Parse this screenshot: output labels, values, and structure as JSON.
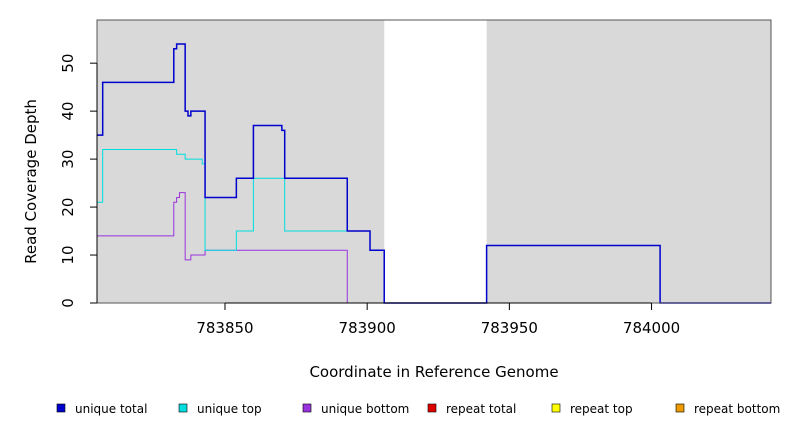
{
  "chart_data": {
    "type": "line",
    "title": "",
    "xlabel": "Coordinate in Reference Genome",
    "ylabel": "Read Coverage Depth",
    "xlim": [
      783805,
      784042
    ],
    "ylim": [
      0,
      59
    ],
    "xticks": [
      783850,
      783900,
      783950,
      784000
    ],
    "yticks": [
      0,
      10,
      20,
      30,
      40,
      50
    ],
    "grid": false,
    "background_color": "#d9d9d9",
    "unshaded_regions": [
      [
        783906,
        783942
      ]
    ],
    "series": [
      {
        "name": "unique total",
        "color": "#0000cc",
        "points": [
          [
            783805,
            35
          ],
          [
            783807,
            35
          ],
          [
            783807,
            46
          ],
          [
            783832,
            46
          ],
          [
            783832,
            53
          ],
          [
            783833,
            53
          ],
          [
            783833,
            54
          ],
          [
            783836,
            54
          ],
          [
            783836,
            40
          ],
          [
            783837,
            40
          ],
          [
            783837,
            39
          ],
          [
            783838,
            39
          ],
          [
            783838,
            40
          ],
          [
            783843,
            40
          ],
          [
            783843,
            22
          ],
          [
            783854,
            22
          ],
          [
            783854,
            26
          ],
          [
            783860,
            26
          ],
          [
            783860,
            37
          ],
          [
            783870,
            37
          ],
          [
            783870,
            36
          ],
          [
            783871,
            36
          ],
          [
            783871,
            26
          ],
          [
            783893,
            26
          ],
          [
            783893,
            15
          ],
          [
            783901,
            15
          ],
          [
            783901,
            11
          ],
          [
            783906,
            11
          ],
          [
            783906,
            0
          ],
          [
            783942,
            0
          ],
          [
            783942,
            12
          ],
          [
            784003,
            12
          ],
          [
            784003,
            0
          ],
          [
            784042,
            0
          ]
        ]
      },
      {
        "name": "unique top",
        "color": "#00dddd",
        "points": [
          [
            783805,
            21
          ],
          [
            783807,
            21
          ],
          [
            783807,
            32
          ],
          [
            783833,
            32
          ],
          [
            783833,
            31
          ],
          [
            783836,
            31
          ],
          [
            783836,
            30
          ],
          [
            783842,
            30
          ],
          [
            783842,
            29
          ],
          [
            783843,
            29
          ],
          [
            783843,
            11
          ],
          [
            783854,
            11
          ],
          [
            783854,
            15
          ],
          [
            783860,
            15
          ],
          [
            783860,
            26
          ],
          [
            783871,
            26
          ],
          [
            783871,
            15
          ],
          [
            783901,
            15
          ],
          [
            783901,
            11
          ],
          [
            783906,
            11
          ],
          [
            783906,
            0
          ],
          [
            784042,
            0
          ]
        ]
      },
      {
        "name": "unique bottom",
        "color": "#9933dd",
        "points": [
          [
            783805,
            14
          ],
          [
            783832,
            14
          ],
          [
            783832,
            21
          ],
          [
            783833,
            21
          ],
          [
            783833,
            22
          ],
          [
            783834,
            22
          ],
          [
            783834,
            23
          ],
          [
            783836,
            23
          ],
          [
            783836,
            9
          ],
          [
            783838,
            9
          ],
          [
            783838,
            10
          ],
          [
            783843,
            10
          ],
          [
            783843,
            11
          ],
          [
            783893,
            11
          ],
          [
            783893,
            0
          ],
          [
            784042,
            0
          ]
        ]
      },
      {
        "name": "repeat total",
        "color": "#dd0000",
        "points": [
          [
            783805,
            0
          ],
          [
            784042,
            0
          ]
        ]
      },
      {
        "name": "repeat top",
        "color": "#ffff00",
        "points": [
          [
            783805,
            0
          ],
          [
            784042,
            0
          ]
        ]
      },
      {
        "name": "repeat bottom",
        "color": "#ee9900",
        "points": [
          [
            783805,
            0
          ],
          [
            784042,
            0
          ]
        ]
      }
    ],
    "legend": {
      "placement": "bottom",
      "items": [
        {
          "label": "unique total",
          "color": "#0000cc"
        },
        {
          "label": "unique top",
          "color": "#00dddd"
        },
        {
          "label": "unique bottom",
          "color": "#9933dd"
        },
        {
          "label": "repeat total",
          "color": "#dd0000"
        },
        {
          "label": "repeat top",
          "color": "#ffff00"
        },
        {
          "label": "repeat bottom",
          "color": "#ee9900"
        }
      ]
    }
  }
}
